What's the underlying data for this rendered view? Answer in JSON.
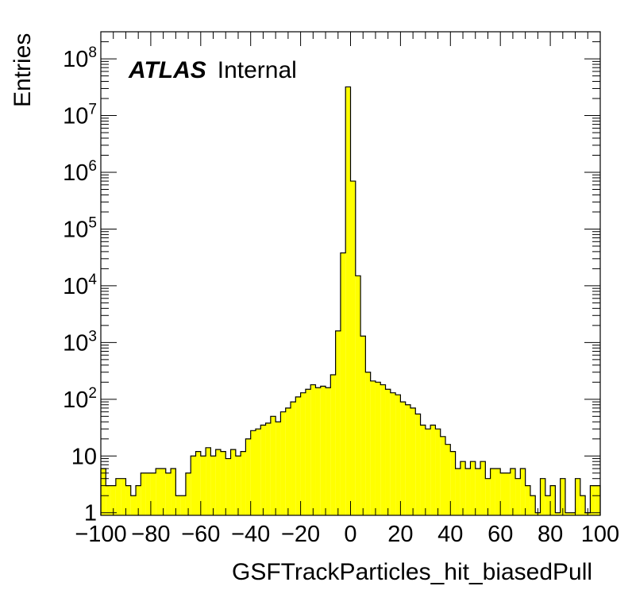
{
  "chart_data": {
    "type": "bar",
    "ylabel": "Entries",
    "xlabel": "GSFTrackParticles_hit_biasedPull",
    "atlas_label": "ATLAS",
    "atlas_status": "Internal",
    "xlim": [
      -100,
      100
    ],
    "ylim": [
      0.9,
      300000000
    ],
    "yscale": "log",
    "bin_width": 2,
    "fill_color": "#ffff00",
    "line_color": "#000000",
    "x_ticks": [
      {
        "value": -100,
        "label": "−100"
      },
      {
        "value": -80,
        "label": "−80"
      },
      {
        "value": -60,
        "label": "−60"
      },
      {
        "value": -40,
        "label": "−40"
      },
      {
        "value": -20,
        "label": "−20"
      },
      {
        "value": 0,
        "label": "0"
      },
      {
        "value": 20,
        "label": "20"
      },
      {
        "value": 40,
        "label": "40"
      },
      {
        "value": 60,
        "label": "60"
      },
      {
        "value": 80,
        "label": "80"
      },
      {
        "value": 100,
        "label": "100"
      }
    ],
    "y_ticks": [
      {
        "value": 1,
        "label": "1"
      },
      {
        "value": 10,
        "label": "10"
      },
      {
        "value": 100,
        "base": "10",
        "exp": "2"
      },
      {
        "value": 1000,
        "base": "10",
        "exp": "3"
      },
      {
        "value": 10000,
        "base": "10",
        "exp": "4"
      },
      {
        "value": 100000,
        "base": "10",
        "exp": "5"
      },
      {
        "value": 1000000,
        "base": "10",
        "exp": "6"
      },
      {
        "value": 10000000,
        "base": "10",
        "exp": "7"
      },
      {
        "value": 100000000,
        "base": "10",
        "exp": "8"
      }
    ],
    "values": [
      6,
      3,
      3,
      4,
      4,
      3,
      2,
      3,
      5,
      5,
      5,
      6,
      6,
      5,
      6,
      2,
      2,
      5,
      10,
      12,
      10,
      14,
      10,
      13,
      12,
      9,
      13,
      10,
      12,
      20,
      28,
      30,
      35,
      38,
      50,
      40,
      60,
      70,
      90,
      110,
      130,
      150,
      180,
      160,
      170,
      160,
      270,
      1600,
      38000,
      32000000,
      700000,
      15000,
      1300,
      300,
      210,
      200,
      180,
      150,
      130,
      120,
      90,
      80,
      70,
      55,
      35,
      30,
      35,
      30,
      22,
      16,
      12,
      6,
      8,
      6,
      8,
      6,
      8,
      4,
      6,
      6,
      5,
      5,
      6,
      4,
      6,
      3,
      2,
      1,
      4,
      2,
      3,
      1,
      4,
      1,
      1,
      4,
      2,
      1,
      3,
      3
    ]
  }
}
